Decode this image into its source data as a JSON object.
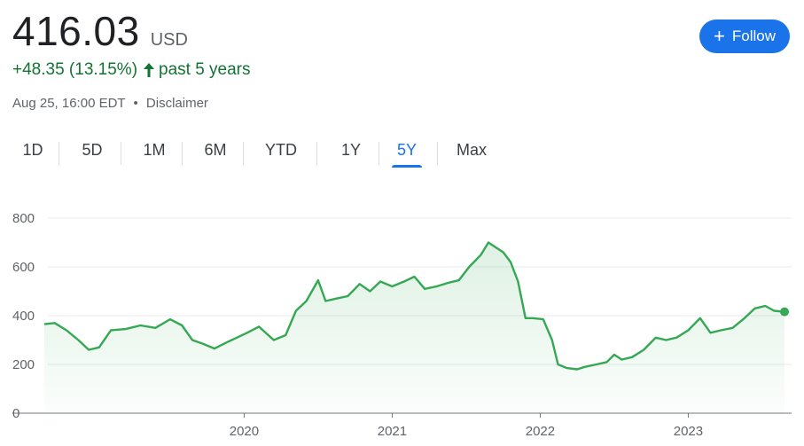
{
  "quote": {
    "price": "416.03",
    "currency": "USD",
    "change": "+48.35 (13.15%)",
    "period": "past 5 years",
    "timestamp": "Aug 25, 16:00 EDT",
    "separator": "•",
    "disclaimer": "Disclaimer"
  },
  "follow_button": {
    "label": "Follow",
    "icon": "plus-icon"
  },
  "tabs": [
    {
      "label": "1D"
    },
    {
      "label": "5D"
    },
    {
      "label": "1M"
    },
    {
      "label": "6M"
    },
    {
      "label": "YTD"
    },
    {
      "label": "1Y"
    },
    {
      "label": "5Y",
      "active": true
    },
    {
      "label": "Max"
    }
  ],
  "colors": {
    "line": "#34a853",
    "positive": "#137333",
    "accent": "#1a73e8"
  },
  "chart_data": {
    "type": "area",
    "x_unit": "year",
    "ylim": [
      0,
      800
    ],
    "yticks": [
      0,
      200,
      400,
      600,
      800
    ],
    "xticks": [
      {
        "label": "2020",
        "x": 2020.0
      },
      {
        "label": "2021",
        "x": 2021.0
      },
      {
        "label": "2022",
        "x": 2022.0
      },
      {
        "label": "2023",
        "x": 2023.0
      }
    ],
    "grid": true,
    "x": [
      2018.65,
      2018.72,
      2018.8,
      2018.88,
      2018.95,
      2019.02,
      2019.1,
      2019.2,
      2019.3,
      2019.4,
      2019.5,
      2019.58,
      2019.65,
      2019.72,
      2019.8,
      2019.88,
      2019.95,
      2020.02,
      2020.1,
      2020.2,
      2020.28,
      2020.35,
      2020.42,
      2020.5,
      2020.55,
      2020.62,
      2020.7,
      2020.78,
      2020.85,
      2020.92,
      2021.0,
      2021.08,
      2021.15,
      2021.22,
      2021.3,
      2021.38,
      2021.45,
      2021.52,
      2021.6,
      2021.65,
      2021.7,
      2021.75,
      2021.8,
      2021.85,
      2021.9,
      2021.95,
      2022.02,
      2022.08,
      2022.12,
      2022.18,
      2022.25,
      2022.3,
      2022.38,
      2022.45,
      2022.5,
      2022.55,
      2022.62,
      2022.7,
      2022.78,
      2022.85,
      2022.92,
      2023.0,
      2023.08,
      2023.15,
      2023.22,
      2023.3,
      2023.38,
      2023.45,
      2023.52,
      2023.58,
      2023.65
    ],
    "values": [
      365,
      370,
      340,
      300,
      260,
      270,
      340,
      345,
      360,
      350,
      385,
      360,
      300,
      285,
      265,
      290,
      310,
      330,
      355,
      300,
      320,
      420,
      460,
      545,
      460,
      470,
      480,
      530,
      500,
      540,
      520,
      540,
      560,
      510,
      520,
      535,
      545,
      600,
      650,
      700,
      680,
      660,
      620,
      540,
      390,
      390,
      385,
      300,
      200,
      185,
      180,
      190,
      200,
      210,
      240,
      220,
      230,
      260,
      310,
      300,
      310,
      340,
      390,
      330,
      340,
      350,
      390,
      430,
      440,
      420,
      416
    ]
  }
}
